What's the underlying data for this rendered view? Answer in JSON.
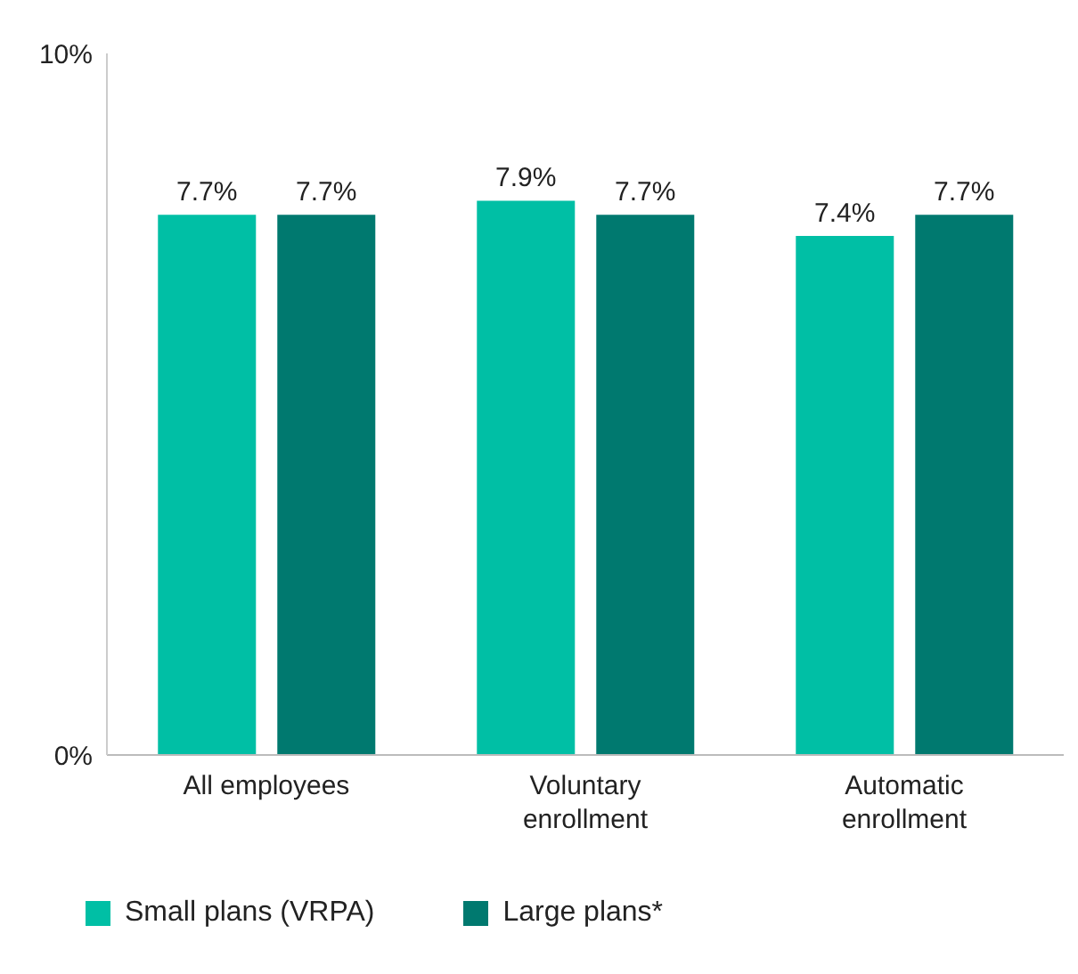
{
  "chart_data": {
    "type": "bar",
    "categories": [
      "All employees",
      "Voluntary enrollment",
      "Automatic enrollment"
    ],
    "series": [
      {
        "name": "Small plans (VRPA)",
        "color": "#00bfa5",
        "values": [
          7.7,
          7.9,
          7.4
        ],
        "value_labels": [
          "7.7%",
          "7.9%",
          "7.4%"
        ]
      },
      {
        "name": "Large plans*",
        "color": "#00796f",
        "values": [
          7.7,
          7.7,
          7.7
        ],
        "value_labels": [
          "7.7%",
          "7.7%",
          "7.7%"
        ]
      }
    ],
    "ylim": [
      0,
      10
    ],
    "yticks": [
      {
        "value": 0,
        "label": "0%"
      },
      {
        "value": 10,
        "label": "10%"
      }
    ],
    "grid": false,
    "legend": "bottom left"
  }
}
